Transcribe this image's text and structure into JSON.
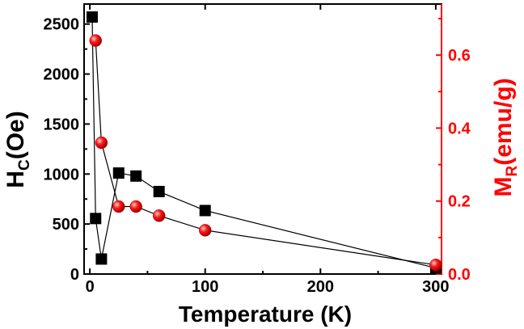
{
  "chart_data": {
    "type": "scatter",
    "x": [
      2,
      5,
      10,
      25,
      40,
      60,
      100,
      300
    ],
    "series": [
      {
        "name": "",
        "axis": "left",
        "values": [
          2570,
          555,
          150,
          1010,
          980,
          825,
          635,
          60
        ],
        "color": "#000000",
        "marker": "square",
        "connected": true
      },
      {
        "name": "",
        "axis": "right",
        "values": [
          0.64,
          0.36,
          0.185,
          0.185,
          0.16,
          0.12,
          0.025
        ],
        "x": [
          5,
          10,
          25,
          40,
          60,
          100,
          300
        ],
        "color": "#ff0000",
        "marker": "circle",
        "connected": true
      }
    ],
    "xlabel": "Temperature (K)",
    "ylabel_left": {
      "main": "H",
      "sub": "C",
      "rest": "(Oe)"
    },
    "ylabel_right": {
      "main": "M",
      "sub": "R",
      "rest": "(emu/g)"
    },
    "xlim": [
      -5,
      305
    ],
    "ylim_left": [
      0,
      2700
    ],
    "ylim_right": [
      0,
      0.74
    ],
    "x_ticks": [
      0,
      100,
      200,
      300
    ],
    "y_left_ticks": [
      0,
      500,
      1000,
      1500,
      2000,
      2500
    ],
    "y_right_ticks": [
      0.0,
      0.2,
      0.4,
      0.6
    ],
    "x_tick_labels": [
      "0",
      "100",
      "200",
      "300"
    ],
    "y_left_tick_labels": [
      "0",
      "500",
      "1000",
      "1500",
      "2000",
      "2500"
    ],
    "y_right_tick_labels": [
      "0.0",
      "0.2",
      "0.4",
      "0.6"
    ],
    "right_axis_color": "#ff0000",
    "grid": false
  }
}
